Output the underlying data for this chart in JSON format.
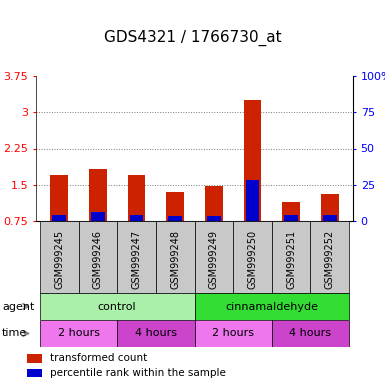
{
  "title": "GDS4321 / 1766730_at",
  "samples": [
    "GSM999245",
    "GSM999246",
    "GSM999247",
    "GSM999248",
    "GSM999249",
    "GSM999250",
    "GSM999251",
    "GSM999252"
  ],
  "red_values": [
    1.7,
    1.82,
    1.7,
    1.35,
    1.48,
    3.25,
    1.15,
    1.3
  ],
  "blue_pct_values": [
    4,
    6,
    4,
    3.5,
    3.5,
    28,
    4,
    4
  ],
  "ylim_left": [
    0.75,
    3.75
  ],
  "ylim_right": [
    0,
    100
  ],
  "yticks_left": [
    0.75,
    1.5,
    2.25,
    3.0,
    3.75
  ],
  "yticks_right": [
    0,
    25,
    50,
    75,
    100
  ],
  "ytick_labels_left": [
    "0.75",
    "1.5",
    "2.25",
    "3",
    "3.75"
  ],
  "ytick_labels_right": [
    "0",
    "25",
    "50",
    "75",
    "100%"
  ],
  "agent_groups": [
    {
      "label": "control",
      "start": 0,
      "end": 4,
      "color": "#aaf0aa"
    },
    {
      "label": "cinnamaldehyde",
      "start": 4,
      "end": 8,
      "color": "#33dd33"
    }
  ],
  "time_groups": [
    {
      "label": "2 hours",
      "start": 0,
      "end": 2,
      "color": "#ee77ee"
    },
    {
      "label": "4 hours",
      "start": 2,
      "end": 4,
      "color": "#cc44cc"
    },
    {
      "label": "2 hours",
      "start": 4,
      "end": 6,
      "color": "#ee77ee"
    },
    {
      "label": "4 hours",
      "start": 6,
      "end": 8,
      "color": "#cc44cc"
    }
  ],
  "baseline": 0.75,
  "red_color": "#cc2200",
  "blue_color": "#0000cc",
  "grid_color": "#777777",
  "bg_plot": "#ffffff",
  "bg_sample_row": "#c8c8c8",
  "title_fontsize": 11,
  "tick_fontsize": 8,
  "label_fontsize": 8,
  "legend_fontsize": 7.5,
  "sample_fontsize": 7
}
